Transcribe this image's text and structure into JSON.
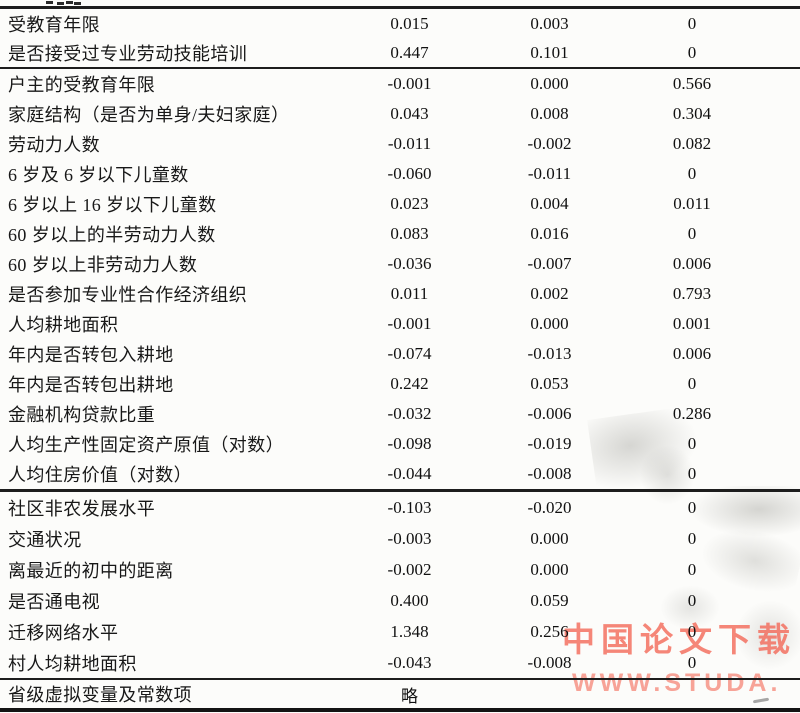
{
  "table": {
    "groups": [
      {
        "rows": [
          {
            "label": "受教育年限",
            "v1": "0.015",
            "v2": "0.003",
            "v3": "0"
          },
          {
            "label": "是否接受过专业劳动技能培训",
            "v1": "0.447",
            "v2": "0.101",
            "v3": "0"
          }
        ]
      },
      {
        "rows": [
          {
            "label": "户主的受教育年限",
            "v1": "-0.001",
            "v2": "0.000",
            "v3": "0.566"
          },
          {
            "label": "家庭结构（是否为单身/夫妇家庭）",
            "v1": "0.043",
            "v2": "0.008",
            "v3": "0.304"
          },
          {
            "label": "劳动力人数",
            "v1": "-0.011",
            "v2": "-0.002",
            "v3": "0.082"
          },
          {
            "label": "6 岁及 6 岁以下儿童数",
            "v1": "-0.060",
            "v2": "-0.011",
            "v3": "0"
          },
          {
            "label": "6 岁以上 16 岁以下儿童数",
            "v1": "0.023",
            "v2": "0.004",
            "v3": "0.011"
          },
          {
            "label": "60 岁以上的半劳动力人数",
            "v1": "0.083",
            "v2": "0.016",
            "v3": "0"
          },
          {
            "label": "60 岁以上非劳动力人数",
            "v1": "-0.036",
            "v2": "-0.007",
            "v3": "0.006"
          },
          {
            "label": "是否参加专业性合作经济组织",
            "v1": "0.011",
            "v2": "0.002",
            "v3": "0.793"
          },
          {
            "label": "人均耕地面积",
            "v1": "-0.001",
            "v2": "0.000",
            "v3": "0.001"
          },
          {
            "label": "年内是否转包入耕地",
            "v1": "-0.074",
            "v2": "-0.013",
            "v3": "0.006"
          },
          {
            "label": "年内是否转包出耕地",
            "v1": "0.242",
            "v2": "0.053",
            "v3": "0"
          },
          {
            "label": "金融机构贷款比重",
            "v1": "-0.032",
            "v2": "-0.006",
            "v3": "0.286"
          },
          {
            "label": "人均生产性固定资产原值（对数）",
            "v1": "-0.098",
            "v2": "-0.019",
            "v3": "0"
          },
          {
            "label": "人均住房价值（对数）",
            "v1": "-0.044",
            "v2": "-0.008",
            "v3": "0"
          }
        ]
      },
      {
        "rows": [
          {
            "label": "社区非农发展水平",
            "v1": "-0.103",
            "v2": "-0.020",
            "v3": "0"
          },
          {
            "label": "交通状况",
            "v1": "-0.003",
            "v2": "0.000",
            "v3": "0"
          },
          {
            "label": "离最近的初中的距离",
            "v1": "-0.002",
            "v2": "0.000",
            "v3": "0"
          },
          {
            "label": "是否通电视",
            "v1": "0.400",
            "v2": "0.059",
            "v3": "0"
          },
          {
            "label": "迁移网络水平",
            "v1": "1.348",
            "v2": "0.256",
            "v3": "0"
          },
          {
            "label": "村人均耕地面积",
            "v1": "-0.043",
            "v2": "-0.008",
            "v3": "0"
          }
        ]
      },
      {
        "rows": [
          {
            "label": "省级虚拟变量及常数项",
            "v1": "略",
            "v2": "",
            "v3": ""
          }
        ]
      }
    ]
  },
  "watermark": {
    "line1": "中国论文下载",
    "line2": "WWW.STUDA.",
    "color_primary": "rgba(242,104,88,0.80)",
    "color_secondary": "rgba(245,140,126,0.80)"
  }
}
